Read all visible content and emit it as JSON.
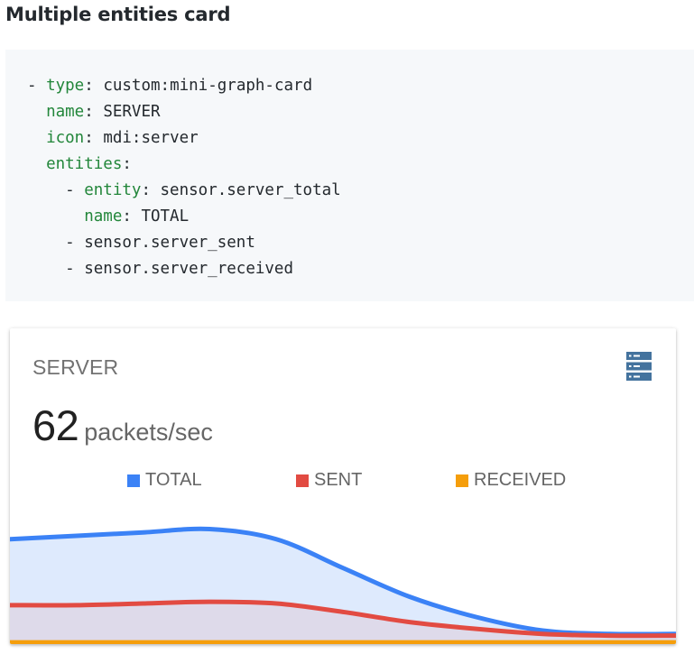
{
  "heading": "Multiple entities card",
  "code_lines": [
    {
      "indent": "- ",
      "key": "type",
      "value": "custom:mini-graph-card"
    },
    {
      "indent": "  ",
      "key": "name",
      "value": "SERVER"
    },
    {
      "indent": "  ",
      "key": "icon",
      "value": "mdi:server"
    },
    {
      "indent": "  ",
      "key": "entities",
      "value": ""
    },
    {
      "indent": "    - ",
      "key": "entity",
      "value": "sensor.server_total"
    },
    {
      "indent": "      ",
      "key": "name",
      "value": "TOTAL"
    },
    {
      "indent": "    - ",
      "key": "",
      "value": "sensor.server_sent"
    },
    {
      "indent": "    - ",
      "key": "",
      "value": "sensor.server_received"
    }
  ],
  "card": {
    "name": "SERVER",
    "icon": "server-icon",
    "state_value": "62",
    "state_unit": "packets/sec",
    "legend": [
      {
        "label": "TOTAL",
        "color": "#3b82f6"
      },
      {
        "label": "SENT",
        "color": "#e24b42"
      },
      {
        "label": "RECEIVED",
        "color": "#f59e0b"
      }
    ]
  },
  "chart_data": {
    "type": "area",
    "x": [
      0,
      1,
      2,
      3,
      4,
      5,
      6,
      7,
      8,
      9,
      10
    ],
    "series": [
      {
        "name": "TOTAL",
        "color": "#3b82f6",
        "values": [
          62,
          64,
          66,
          68,
          62,
          45,
          28,
          16,
          8,
          6,
          6
        ]
      },
      {
        "name": "SENT",
        "color": "#e24b42",
        "values": [
          23,
          23,
          24,
          25,
          24,
          19,
          13,
          9,
          6,
          5,
          5
        ]
      },
      {
        "name": "RECEIVED",
        "color": "#f59e0b",
        "values": [
          1,
          1,
          1,
          1,
          1,
          1,
          1,
          1,
          1,
          1,
          1
        ]
      }
    ],
    "ylim": [
      0,
      80
    ]
  }
}
